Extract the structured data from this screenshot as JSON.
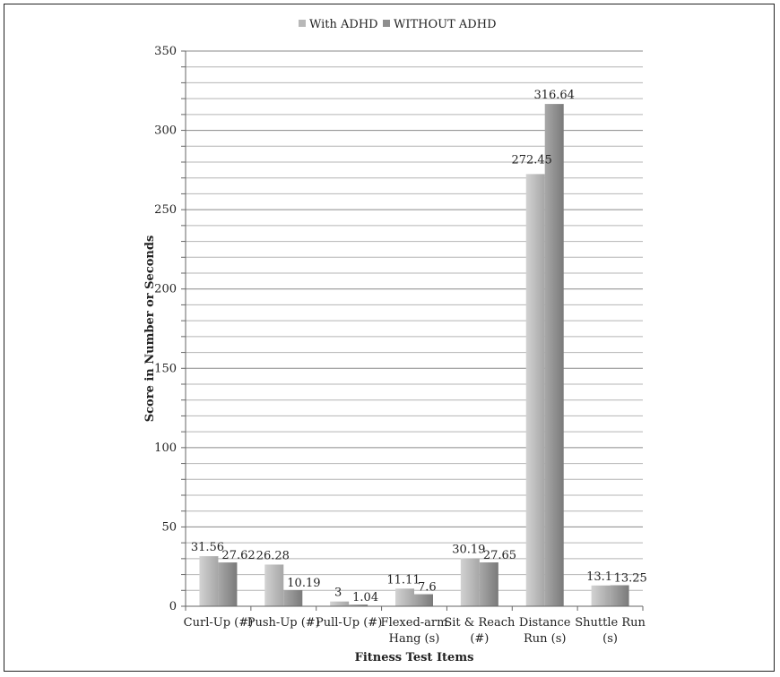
{
  "chart_data": {
    "type": "bar",
    "title": "",
    "xlabel": "Fitness Test Items",
    "ylabel": "Score in Number or Seconds",
    "ylim": [
      0,
      350
    ],
    "y_ticks": [
      0,
      50,
      100,
      150,
      200,
      250,
      300,
      350
    ],
    "grid": true,
    "legend_position": "top",
    "categories": [
      [
        "Curl-Up (#)"
      ],
      [
        "Push-Up (#)"
      ],
      [
        "Pull-Up (#)"
      ],
      [
        "Flexed-arm",
        "Hang (s)"
      ],
      [
        "Sit & Reach",
        "(#)"
      ],
      [
        "Distance",
        "Run (s)"
      ],
      [
        "Shuttle Run",
        "(s)"
      ]
    ],
    "series": [
      {
        "name": "With ADHD",
        "color": "#b8b8b8",
        "values": [
          31.56,
          26.28,
          3,
          11.11,
          30.19,
          272.45,
          13.1
        ],
        "labels": [
          "31.56",
          "26.28",
          "3",
          "11.11",
          "30.19",
          "272.45",
          "13.1"
        ]
      },
      {
        "name": "WITHOUT ADHD",
        "color": "#8e8e8e",
        "values": [
          27.62,
          10.19,
          1.04,
          7.6,
          27.65,
          316.64,
          13.25
        ],
        "labels": [
          "27.62",
          "10.19",
          "1.04",
          "7.6",
          "27.65",
          "316.64",
          "13.25"
        ]
      }
    ]
  }
}
